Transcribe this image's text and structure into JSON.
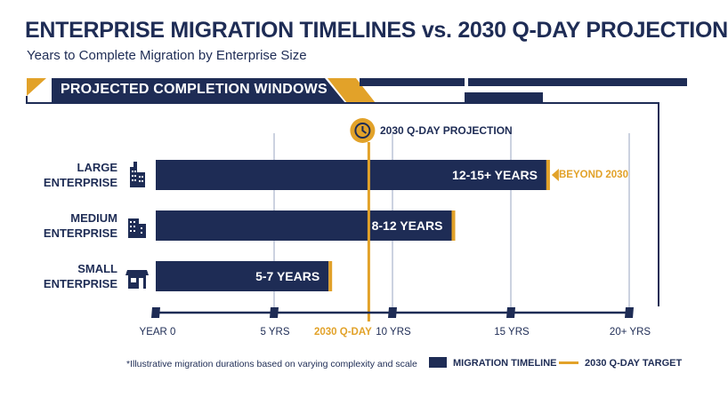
{
  "title": "ENTERPRISE MIGRATION TIMELINES vs. 2030 Q-DAY PROJECTION",
  "subtitle": "Years to Complete Migration by Enterprise Size",
  "banner": "PROJECTED COMPLETION WINDOWS",
  "colors": {
    "navy": "#1e2c55",
    "gold": "#e2a229",
    "gridline": "#9aa6c2"
  },
  "icons": {
    "large": "office-tower-icon",
    "medium": "office-building-icon",
    "small": "storefront-icon",
    "marker": "clock-icon"
  },
  "chart_data": {
    "type": "bar",
    "orientation": "horizontal",
    "title": "ENTERPRISE MIGRATION TIMELINES vs. 2030 Q-DAY PROJECTION",
    "subtitle": "Years to Complete Migration by Enterprise Size",
    "categories": [
      "LARGE ENTERPRISE",
      "MEDIUM ENTERPRISE",
      "SMALL ENTERPRISE"
    ],
    "category_lines": [
      [
        "LARGE",
        "ENTERPRISE"
      ],
      [
        "MEDIUM",
        "ENTERPRISE"
      ],
      [
        "SMALL",
        "ENTERPRISE"
      ]
    ],
    "series": [
      {
        "name": "MIGRATION TIMELINE",
        "values": [
          16.5,
          12.5,
          7.3
        ],
        "labels": [
          "12-15+ YEARS",
          "8-12 YEARS",
          "5-7 YEARS"
        ]
      }
    ],
    "x_ticks": [
      {
        "value": 0,
        "label": "YEAR 0"
      },
      {
        "value": 5,
        "label": "5 YRS"
      },
      {
        "value": 10,
        "label": "10 YRS"
      },
      {
        "value": 15,
        "label": "15 YRS"
      },
      {
        "value": 20,
        "label": "20+ YRS"
      }
    ],
    "xlim": [
      0,
      20
    ],
    "reference_line": {
      "value": 9,
      "name": "2030 Q-DAY TARGET",
      "label": "2030 Q-DAY PROJECTION",
      "axis_label": "2030 Q-DAY"
    },
    "annotation": "BEYOND 2030",
    "gridlines": true,
    "legend": {
      "position": "bottom-right",
      "entries": [
        "MIGRATION TIMELINE",
        "2030 Q-DAY TARGET"
      ]
    },
    "footnote": "*Illustrative migration durations based on varying complexity and scale"
  }
}
